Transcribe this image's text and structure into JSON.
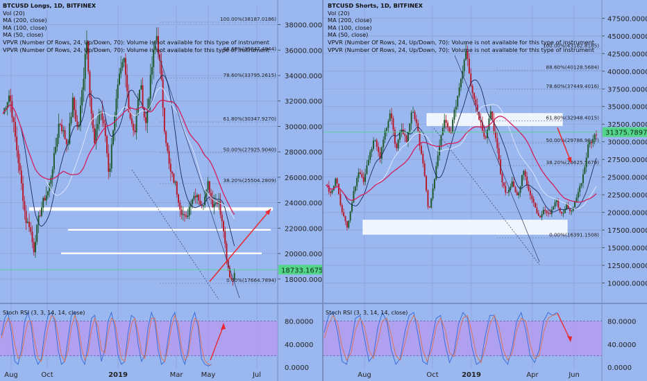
{
  "colors": {
    "background": "#9bb7ef",
    "candle_up": "#1f5a2e",
    "candle_down": "#b71c2c",
    "ma_fast": "#1a2a5c",
    "ma_mid": "#e0e8ff",
    "ma_slow": "#d21f5c",
    "fib_line": "#7b8db8",
    "arrow": "#e8282f",
    "price_line": "#54d68a",
    "rsi_band": "#b59af0",
    "rsi_k": "#3b6fd8",
    "rsi_d": "#d9735a"
  },
  "chart_data": [
    {
      "type": "candlestick",
      "title": "BTCUSD Longs, 1D, BITFINEX",
      "indicators": [
        "Vol (20)",
        "MA (200, close)",
        "MA (100, close)",
        "MA (50, close)",
        "VPVR (Number Of Rows, 24, Up/Down, 70): Volume is not available for this type of instrument",
        "VPVR (Number Of Rows, 24, Up/Down, 70): Volume is not available for this type of instrument"
      ],
      "y_ticks": [
        "38000.0000",
        "36000.0000",
        "34000.0000",
        "32000.0000",
        "30000.0000",
        "28000.0000",
        "26000.0000",
        "24000.0000",
        "22000.0000",
        "20000.0000",
        "18000.0000"
      ],
      "y_range": [
        16300,
        39500
      ],
      "x_ticks": [
        "Aug",
        "Oct",
        "2019",
        "Mar",
        "May",
        "Jul"
      ],
      "last_price": "18733.1675",
      "fib_levels": [
        {
          "label": "100.00%(38187.0186)",
          "value": 38187
        },
        {
          "label": "88.60%(35847.4844)",
          "value": 35847
        },
        {
          "label": "78.60%(33795.2615)",
          "value": 33795
        },
        {
          "label": "61.80%(30347.9270)",
          "value": 30348
        },
        {
          "label": "50.00%(27925.9040)",
          "value": 27926
        },
        {
          "label": "38.20%(25504.2809)",
          "value": 25504
        },
        {
          "label": "0.00%(17664.7894)",
          "value": 17665
        }
      ],
      "support_levels": [
        23500,
        21800,
        19950
      ],
      "price_path": [
        [
          0,
          31000
        ],
        [
          0.025,
          32600
        ],
        [
          0.05,
          28500
        ],
        [
          0.07,
          25300
        ],
        [
          0.085,
          22600
        ],
        [
          0.1,
          22200
        ],
        [
          0.115,
          20200
        ],
        [
          0.13,
          22500
        ],
        [
          0.15,
          24100
        ],
        [
          0.17,
          25000
        ],
        [
          0.19,
          27500
        ],
        [
          0.21,
          30500
        ],
        [
          0.24,
          28500
        ],
        [
          0.26,
          32000
        ],
        [
          0.28,
          29500
        ],
        [
          0.3,
          34000
        ],
        [
          0.31,
          37300
        ],
        [
          0.325,
          32000
        ],
        [
          0.34,
          28500
        ],
        [
          0.36,
          31500
        ],
        [
          0.38,
          29500
        ],
        [
          0.395,
          26000
        ],
        [
          0.41,
          30000
        ],
        [
          0.43,
          33500
        ],
        [
          0.45,
          35200
        ],
        [
          0.47,
          31000
        ],
        [
          0.49,
          29500
        ],
        [
          0.51,
          33500
        ],
        [
          0.53,
          30000
        ],
        [
          0.55,
          34000
        ],
        [
          0.57,
          37400
        ],
        [
          0.585,
          34500
        ],
        [
          0.6,
          30000
        ],
        [
          0.62,
          26500
        ],
        [
          0.64,
          25500
        ],
        [
          0.66,
          23500
        ],
        [
          0.68,
          22600
        ],
        [
          0.7,
          24300
        ],
        [
          0.72,
          24800
        ],
        [
          0.74,
          23500
        ],
        [
          0.76,
          25800
        ],
        [
          0.78,
          23800
        ],
        [
          0.8,
          24300
        ],
        [
          0.81,
          22800
        ],
        [
          0.82,
          21800
        ],
        [
          0.83,
          19500
        ],
        [
          0.845,
          18000
        ],
        [
          0.86,
          18300
        ]
      ],
      "rsi": {
        "label": "Stoch RSI (3, 3, 14, 14, close)",
        "y_ticks": [
          "80.0000",
          "40.0000",
          "0.0000"
        ],
        "k": [
          55,
          85,
          95,
          60,
          10,
          5,
          30,
          80,
          95,
          70,
          20,
          5,
          15,
          60,
          90,
          95,
          80,
          30,
          5,
          10,
          50,
          90,
          95,
          60,
          15,
          5,
          40,
          85,
          90,
          50,
          10,
          30,
          80,
          95,
          70,
          20,
          5,
          10,
          60,
          90,
          85,
          40,
          10,
          20,
          70,
          95,
          80,
          30,
          5,
          10,
          50,
          85,
          95,
          60,
          20,
          5,
          30,
          80,
          95,
          70,
          15,
          5,
          2,
          5
        ],
        "d": [
          50,
          70,
          85,
          75,
          40,
          15,
          20,
          55,
          80,
          80,
          45,
          15,
          10,
          40,
          70,
          90,
          85,
          55,
          20,
          10,
          30,
          70,
          90,
          75,
          35,
          12,
          25,
          65,
          85,
          70,
          30,
          25,
          60,
          85,
          80,
          45,
          15,
          10,
          40,
          75,
          85,
          60,
          25,
          15,
          50,
          85,
          85,
          50,
          15,
          10,
          35,
          70,
          90,
          75,
          35,
          12,
          20,
          60,
          85,
          80,
          35,
          12,
          5,
          4
        ]
      },
      "projection_arrow": {
        "from": 17800,
        "to": 23500
      }
    },
    {
      "type": "candlestick",
      "title": "BTCUSD Shorts, 1D, BITFINEX",
      "indicators": [
        "Vol (20)",
        "MA (200, close)",
        "MA (100, close)",
        "MA (50, close)",
        "VPVR (Number Of Rows, 24, Up/Down, 70): Volume is not available for this type of instrument",
        "VPVR (Number Of Rows, 24, Up/Down, 70): Volume is not available for this type of instrument"
      ],
      "y_ticks": [
        "47500.0000",
        "45000.0000",
        "42500.0000",
        "40000.0000",
        "37500.0000",
        "35000.0000",
        "32500.0000",
        "30000.0000",
        "27500.0000",
        "25000.0000",
        "22500.0000",
        "20000.0000",
        "17500.0000",
        "15000.0000",
        "12500.0000",
        "10000.0000"
      ],
      "y_range": [
        7500,
        49300
      ],
      "x_ticks": [
        "Aug",
        "Oct",
        "2019",
        "Apr",
        "Jun"
      ],
      "last_price": "31375.7897",
      "fib_levels": [
        {
          "label": "100.00%(43182.8185)",
          "value": 43183
        },
        {
          "label": "88.60%(40128.5684)",
          "value": 40129
        },
        {
          "label": "78.60%(37449.4016)",
          "value": 37449
        },
        {
          "label": "61.80%(32948.4015)",
          "value": 32948
        },
        {
          "label": "50.00%(29786.9847)",
          "value": 29787
        },
        {
          "label": "38.20%(26625.5679)",
          "value": 26626
        },
        {
          "label": "0.00%(16391.1508)",
          "value": 16391
        }
      ],
      "zones": [
        [
          32300,
          34000
        ],
        [
          16900,
          18900
        ]
      ],
      "price_path": [
        [
          0,
          24000
        ],
        [
          0.02,
          22500
        ],
        [
          0.04,
          25000
        ],
        [
          0.06,
          20000
        ],
        [
          0.08,
          18000
        ],
        [
          0.1,
          22000
        ],
        [
          0.12,
          26000
        ],
        [
          0.14,
          24500
        ],
        [
          0.16,
          28000
        ],
        [
          0.18,
          30500
        ],
        [
          0.2,
          27500
        ],
        [
          0.22,
          31500
        ],
        [
          0.24,
          34500
        ],
        [
          0.26,
          28500
        ],
        [
          0.28,
          32000
        ],
        [
          0.3,
          30000
        ],
        [
          0.32,
          35000
        ],
        [
          0.34,
          31500
        ],
        [
          0.36,
          27000
        ],
        [
          0.38,
          20000
        ],
        [
          0.4,
          24000
        ],
        [
          0.42,
          29500
        ],
        [
          0.44,
          33000
        ],
        [
          0.46,
          31000
        ],
        [
          0.48,
          35000
        ],
        [
          0.5,
          39000
        ],
        [
          0.52,
          43500
        ],
        [
          0.535,
          38500
        ],
        [
          0.55,
          36000
        ],
        [
          0.57,
          33000
        ],
        [
          0.59,
          30500
        ],
        [
          0.61,
          34500
        ],
        [
          0.63,
          30000
        ],
        [
          0.65,
          24500
        ],
        [
          0.67,
          22500
        ],
        [
          0.69,
          24500
        ],
        [
          0.71,
          22000
        ],
        [
          0.73,
          26000
        ],
        [
          0.75,
          23000
        ],
        [
          0.77,
          21000
        ],
        [
          0.79,
          19000
        ],
        [
          0.81,
          20500
        ],
        [
          0.83,
          19500
        ],
        [
          0.85,
          22000
        ],
        [
          0.87,
          19500
        ],
        [
          0.89,
          21000
        ],
        [
          0.91,
          20000
        ],
        [
          0.93,
          22500
        ],
        [
          0.95,
          25000
        ],
        [
          0.97,
          29500
        ],
        [
          1.0,
          31300
        ]
      ],
      "rsi": {
        "label": "Stoch RSI (3, 3, 14, 14, close)",
        "y_ticks": [
          "80.0000",
          "40.0000",
          "0.0000"
        ],
        "k": [
          60,
          90,
          95,
          60,
          10,
          5,
          40,
          85,
          90,
          50,
          10,
          20,
          70,
          95,
          80,
          30,
          5,
          15,
          60,
          90,
          95,
          55,
          10,
          5,
          45,
          85,
          90,
          40,
          8,
          25,
          75,
          95,
          85,
          35,
          5,
          10,
          55,
          90,
          90,
          50,
          15,
          5,
          35,
          80,
          95,
          65,
          20,
          8,
          30,
          80,
          95,
          90,
          95
        ],
        "d": [
          50,
          75,
          90,
          75,
          35,
          12,
          25,
          65,
          85,
          70,
          30,
          15,
          45,
          80,
          85,
          55,
          20,
          12,
          40,
          75,
          90,
          75,
          30,
          10,
          30,
          70,
          85,
          65,
          25,
          18,
          55,
          85,
          90,
          60,
          20,
          8,
          35,
          75,
          90,
          70,
          30,
          12,
          25,
          65,
          85,
          80,
          40,
          15,
          20,
          60,
          85,
          90,
          92
        ]
      },
      "projection_arrow": {
        "from": 32000,
        "to": 27000
      }
    }
  ]
}
